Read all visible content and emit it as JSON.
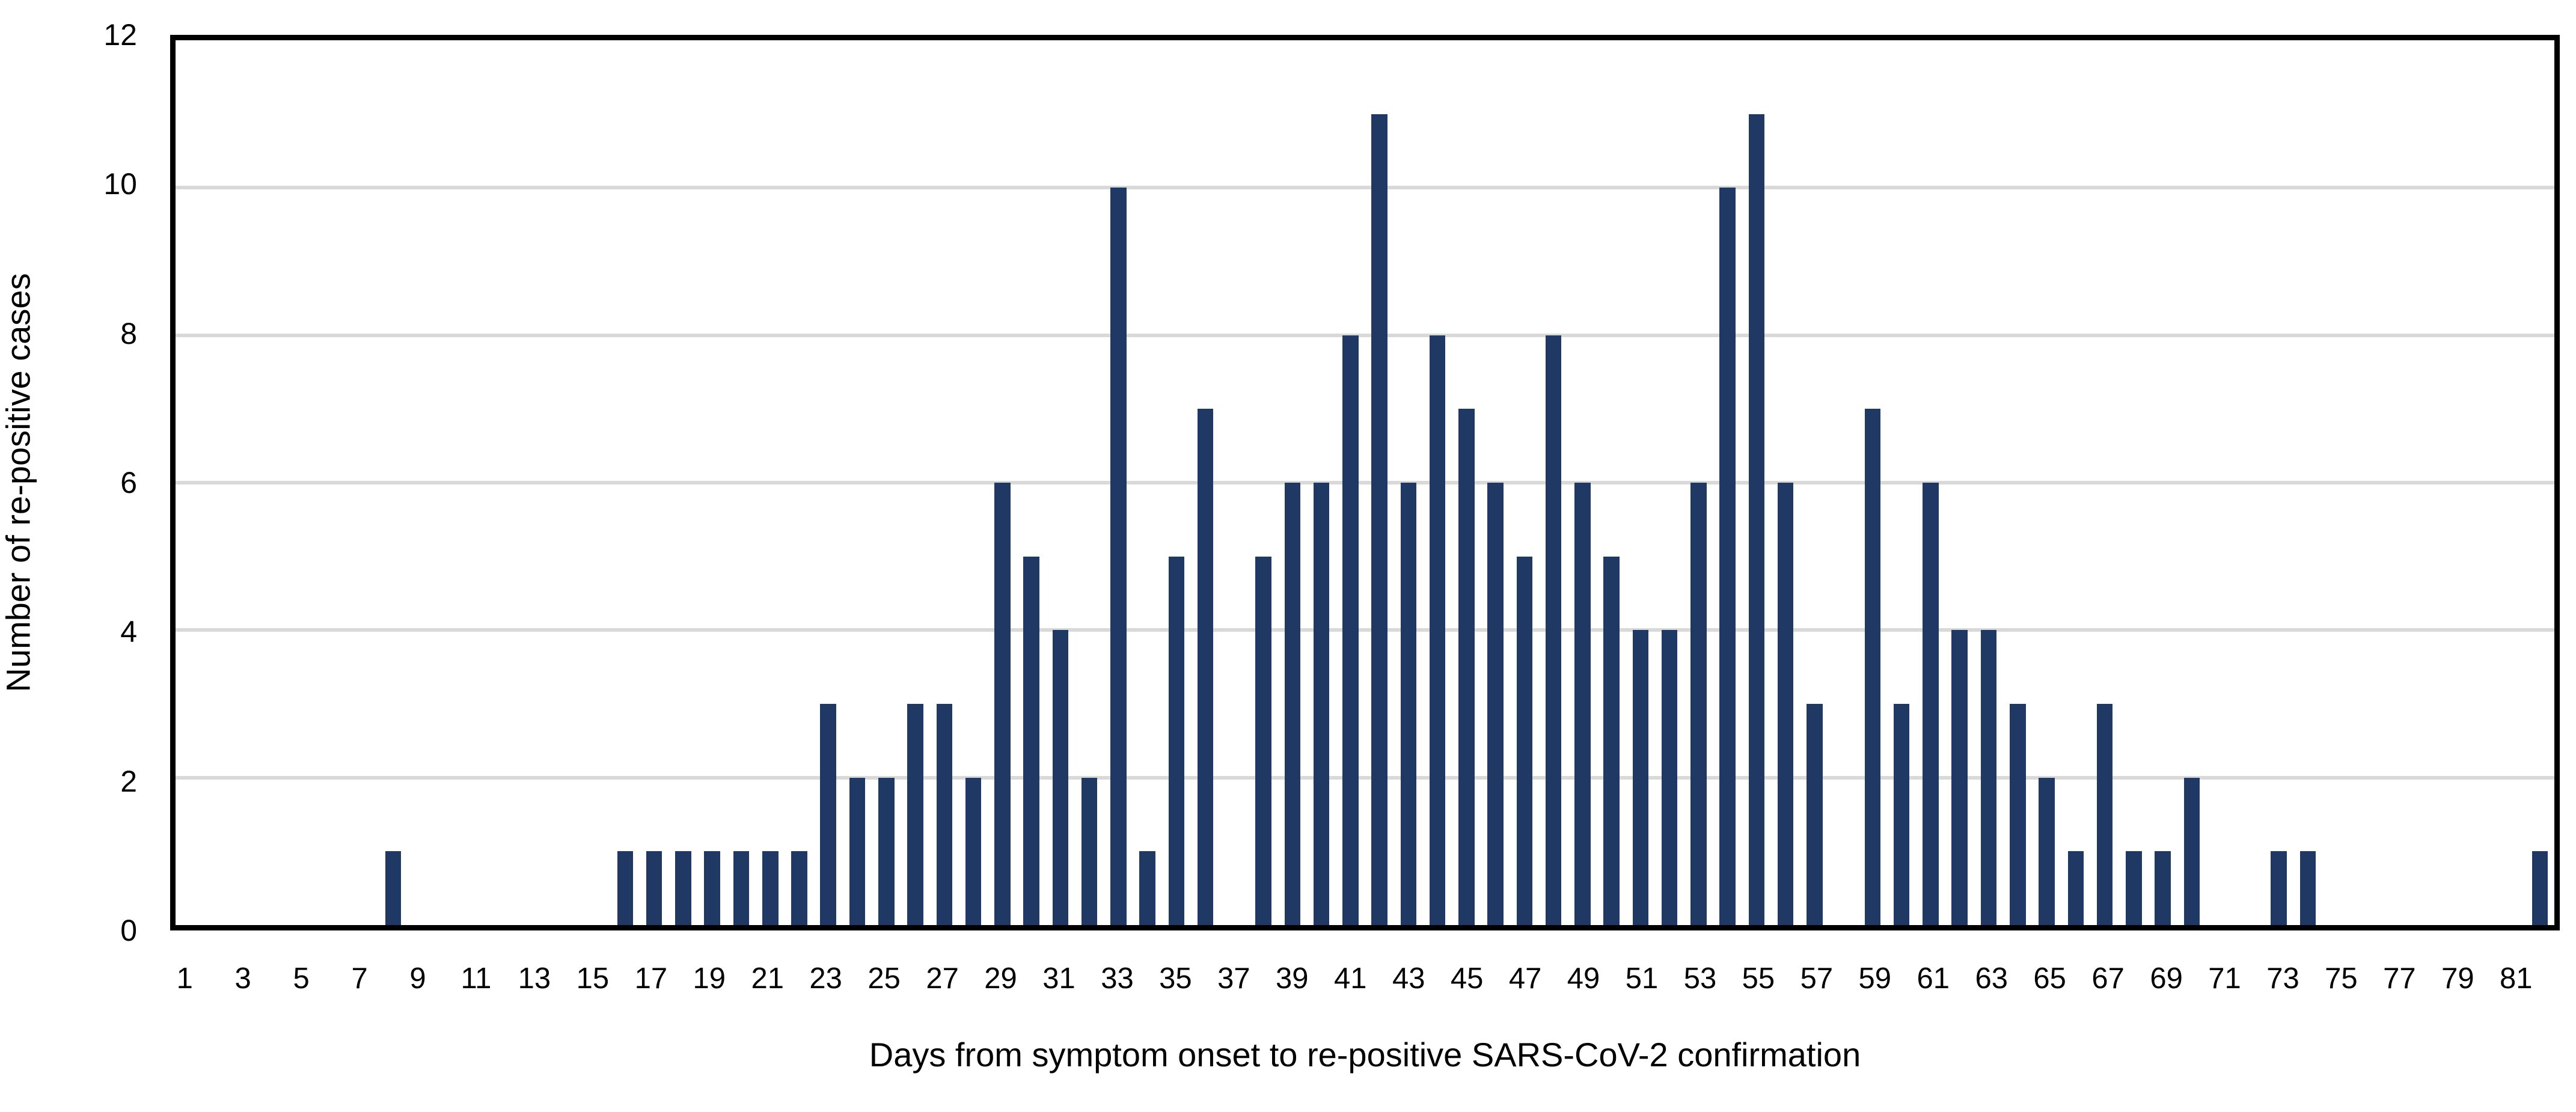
{
  "chart_data": {
    "type": "bar",
    "title": "",
    "xlabel": "Days from symptom onset to re-positive SARS-CoV-2 confirmation",
    "ylabel": "Number of re-positive cases",
    "categories": [
      1,
      2,
      3,
      4,
      5,
      6,
      7,
      8,
      9,
      10,
      11,
      12,
      13,
      14,
      15,
      16,
      17,
      18,
      19,
      20,
      21,
      22,
      23,
      24,
      25,
      26,
      27,
      28,
      29,
      30,
      31,
      32,
      33,
      34,
      35,
      36,
      37,
      38,
      39,
      40,
      41,
      42,
      43,
      44,
      45,
      46,
      47,
      48,
      49,
      50,
      51,
      52,
      53,
      54,
      55,
      56,
      57,
      58,
      59,
      60,
      61,
      62,
      63,
      64,
      65,
      66,
      67,
      68,
      69,
      70,
      71,
      72,
      73,
      74,
      75,
      76,
      77,
      78,
      79,
      80,
      81,
      82
    ],
    "values": [
      0,
      0,
      0,
      0,
      0,
      0,
      0,
      1,
      0,
      0,
      0,
      0,
      0,
      0,
      0,
      1,
      1,
      1,
      1,
      1,
      1,
      1,
      3,
      2,
      2,
      3,
      3,
      2,
      6,
      5,
      4,
      2,
      10,
      1,
      5,
      7,
      0,
      5,
      6,
      6,
      8,
      11,
      6,
      8,
      7,
      6,
      5,
      8,
      6,
      5,
      4,
      4,
      6,
      10,
      11,
      6,
      3,
      0,
      7,
      3,
      6,
      4,
      4,
      3,
      2,
      1,
      3,
      1,
      1,
      2,
      0,
      0,
      1,
      1,
      0,
      0,
      0,
      0,
      0,
      0,
      0,
      1
    ],
    "x_tick_labels": [
      "1",
      "3",
      "5",
      "7",
      "9",
      "11",
      "13",
      "15",
      "17",
      "19",
      "21",
      "23",
      "25",
      "27",
      "29",
      "31",
      "33",
      "35",
      "37",
      "39",
      "41",
      "43",
      "45",
      "47",
      "49",
      "51",
      "53",
      "55",
      "57",
      "59",
      "61",
      "63",
      "65",
      "67",
      "69",
      "71",
      "73",
      "75",
      "77",
      "79",
      "81"
    ],
    "x_tick_days": [
      1,
      3,
      5,
      7,
      9,
      11,
      13,
      15,
      17,
      19,
      21,
      23,
      25,
      27,
      29,
      31,
      33,
      35,
      37,
      39,
      41,
      43,
      45,
      47,
      49,
      51,
      53,
      55,
      57,
      59,
      61,
      63,
      65,
      67,
      69,
      71,
      73,
      75,
      77,
      79,
      81
    ],
    "y_ticks": [
      0,
      2,
      4,
      6,
      8,
      10,
      12
    ],
    "ylim": [
      0,
      12
    ],
    "grid": "horizontal-major",
    "legend": "none",
    "bar_color": "#1F3864",
    "gridline_color": "#D9D9D9",
    "plot_border_color": "#000000",
    "text_color": "#000000"
  }
}
